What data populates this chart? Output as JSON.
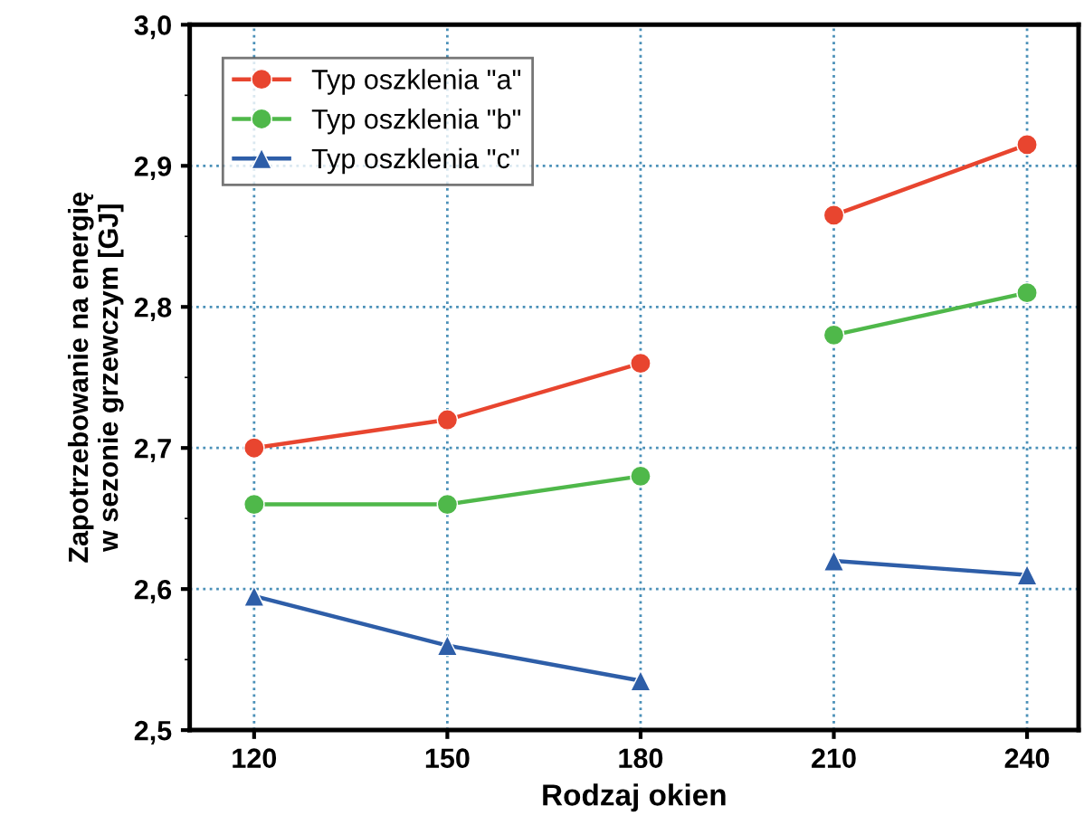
{
  "chart_data": {
    "type": "line",
    "xlabel": "Rodzaj okien",
    "ylabel": "Zapotrzebowanie na energię\nw sezonie grzewczym [GJ]",
    "x": [
      120,
      150,
      180,
      195,
      210,
      240
    ],
    "series": [
      {
        "name": "Typ oszklenia \"a\"",
        "color": "#e8452f",
        "marker": "circle",
        "values": [
          2.7,
          2.72,
          2.76,
          null,
          2.865,
          2.915
        ]
      },
      {
        "name": "Typ oszklenia \"b\"",
        "color": "#4fb84a",
        "marker": "circle",
        "values": [
          2.66,
          2.66,
          2.68,
          null,
          2.78,
          2.81
        ]
      },
      {
        "name": "Typ oszklenia \"c\"",
        "color": "#2e5ea8",
        "marker": "triangle",
        "values": [
          2.595,
          2.56,
          2.535,
          null,
          2.62,
          2.61
        ]
      }
    ],
    "xlim": [
      110,
      248
    ],
    "xticks": [
      120,
      150,
      180,
      210,
      240
    ],
    "ylim": [
      2.5,
      3.0
    ],
    "yticks": [
      {
        "value": 2.5,
        "label": "2,5"
      },
      {
        "value": 2.6,
        "label": "2,6"
      },
      {
        "value": 2.7,
        "label": "2,7"
      },
      {
        "value": 2.8,
        "label": "2,8"
      },
      {
        "value": 2.9,
        "label": "2,9"
      },
      {
        "value": 3.0,
        "label": "3,0"
      }
    ],
    "grid": true,
    "legend": "top left",
    "line_style": "solid"
  }
}
